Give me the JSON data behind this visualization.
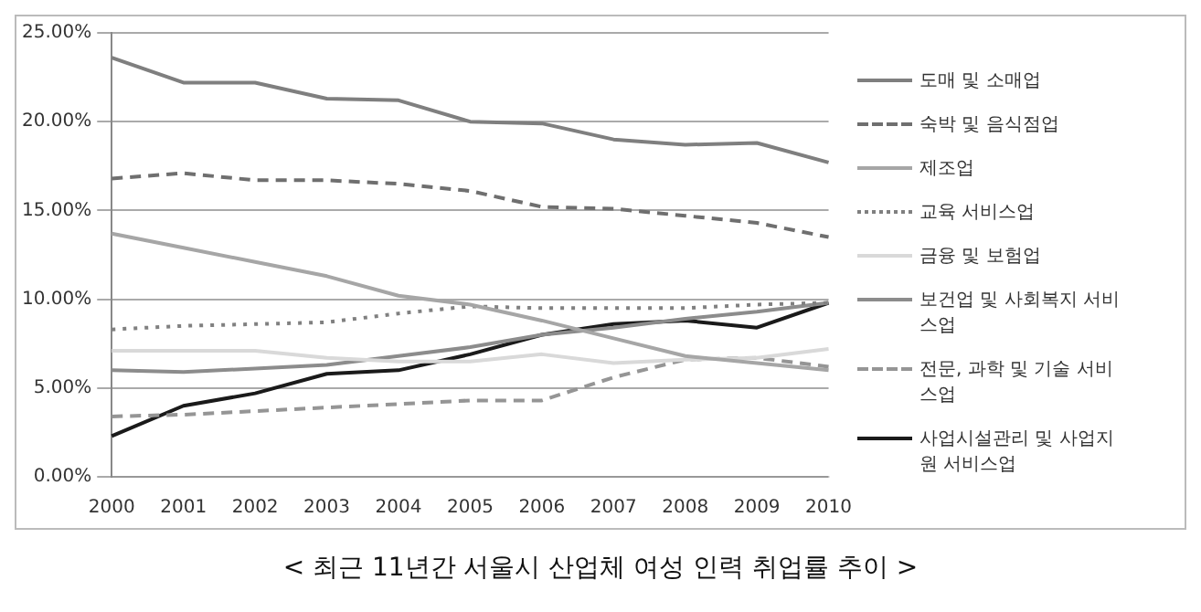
{
  "chart_data": {
    "type": "line",
    "title": "< 최근 11년간 서울시 산업체 여성 인력 취업률 추이 >",
    "categories": [
      "2000",
      "2001",
      "2002",
      "2003",
      "2004",
      "2005",
      "2006",
      "2007",
      "2008",
      "2009",
      "2010"
    ],
    "ylim": [
      0,
      25
    ],
    "yticks": [
      {
        "value": 0,
        "label": "0.00%"
      },
      {
        "value": 5,
        "label": "5.00%"
      },
      {
        "value": 10,
        "label": "10.00%"
      },
      {
        "value": 15,
        "label": "15.00%"
      },
      {
        "value": 20,
        "label": "20.00%"
      },
      {
        "value": 25,
        "label": "25.00%"
      }
    ],
    "grid": "y",
    "legend": "right",
    "marker": "none",
    "series": [
      {
        "name": "도매 및 소매업",
        "color": "#7f7f7f",
        "line_style": "solid",
        "values": [
          23.6,
          22.2,
          22.2,
          21.3,
          21.2,
          20.0,
          19.9,
          19.0,
          18.7,
          18.8,
          17.7
        ]
      },
      {
        "name": "숙박 및 음식점업",
        "color": "#6f6f6f",
        "line_style": "dashed",
        "values": [
          16.8,
          17.1,
          16.7,
          16.7,
          16.5,
          16.1,
          15.2,
          15.1,
          14.7,
          14.3,
          13.5
        ]
      },
      {
        "name": "제조업",
        "color": "#a6a6a6",
        "line_style": "solid",
        "values": [
          13.7,
          12.9,
          12.1,
          11.3,
          10.2,
          9.7,
          8.8,
          7.8,
          6.8,
          6.4,
          6.0
        ]
      },
      {
        "name": "교육 서비스업",
        "color": "#808080",
        "line_style": "dotted",
        "values": [
          8.3,
          8.5,
          8.6,
          8.7,
          9.2,
          9.6,
          9.5,
          9.5,
          9.5,
          9.7,
          9.8
        ]
      },
      {
        "name": "금융 및 보험업",
        "color": "#d9d9d9",
        "line_style": "solid",
        "values": [
          7.1,
          7.1,
          7.1,
          6.7,
          6.5,
          6.5,
          6.9,
          6.4,
          6.6,
          6.7,
          7.2
        ]
      },
      {
        "name": "보건업 및 사회복지 서비스업",
        "color": "#8c8c8c",
        "line_style": "solid",
        "values": [
          6.0,
          5.9,
          6.1,
          6.3,
          6.8,
          7.3,
          8.0,
          8.4,
          8.9,
          9.3,
          9.8
        ]
      },
      {
        "name": "전문, 과학 및 기술 서비스업",
        "color": "#959595",
        "line_style": "dashed",
        "values": [
          3.4,
          3.5,
          3.7,
          3.9,
          4.1,
          4.3,
          4.3,
          5.6,
          6.6,
          6.7,
          6.2
        ]
      },
      {
        "name": "사업시설관리 및 사업지원 서비스업",
        "color": "#1a1a1a",
        "line_style": "solid",
        "values": [
          2.3,
          4.0,
          4.7,
          5.8,
          6.0,
          6.9,
          8.0,
          8.6,
          8.8,
          8.4,
          9.8
        ]
      }
    ]
  }
}
